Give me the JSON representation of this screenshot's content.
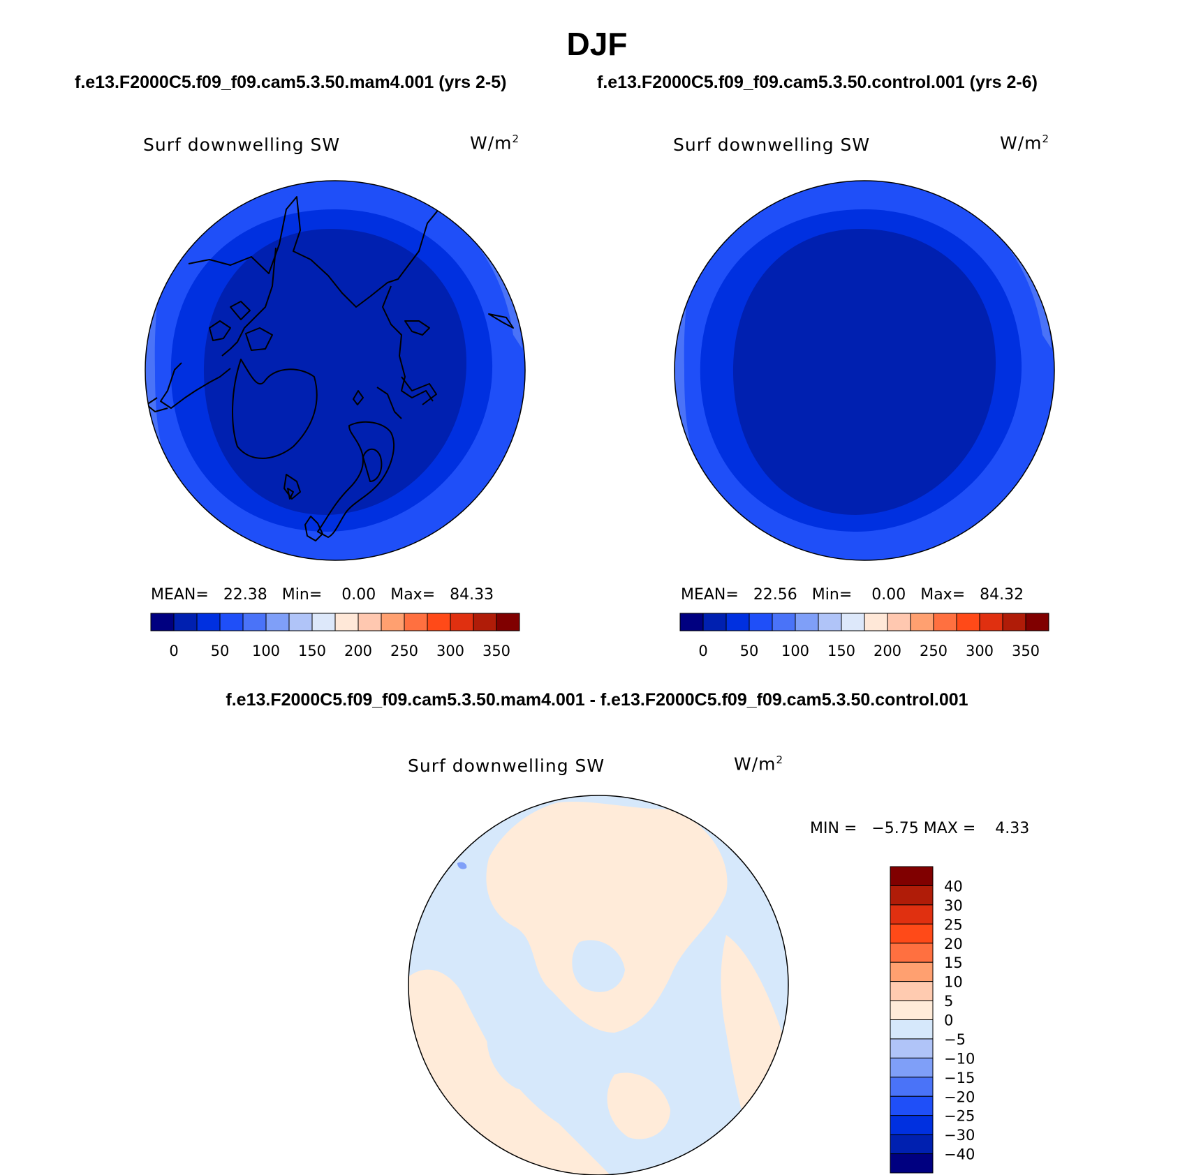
{
  "title": "DJF",
  "case_titles": {
    "left": "f.e13.F2000C5.f09_f09.cam5.3.50.mam4.001 (yrs 2-5)",
    "right": "f.e13.F2000C5.f09_f09.cam5.3.50.control.001 (yrs 2-6)"
  },
  "diff_title": "f.e13.F2000C5.f09_f09.cam5.3.50.mam4.001 - f.e13.F2000C5.f09_f09.cam5.3.50.control.001",
  "colors": {
    "abs_levels": [
      "#000080",
      "#0020b0",
      "#0030e0",
      "#1f4ff8",
      "#4a73f8",
      "#7f9ff8",
      "#b0c4f8",
      "#dde8fa",
      "#ffe8d8",
      "#ffc8b0",
      "#ffa070",
      "#ff7040",
      "#ff4a18",
      "#e03010",
      "#b01c08",
      "#800000"
    ],
    "diff_levels": [
      "#000080",
      "#0020b0",
      "#0030e0",
      "#1f4ff8",
      "#4a73f8",
      "#7f9ff8",
      "#b0c4f8",
      "#d6e8fb",
      "#ffebd9",
      "#ffcbb0",
      "#ffa070",
      "#ff7040",
      "#ff4a18",
      "#e03010",
      "#b01c08",
      "#800000"
    ],
    "map_outer": "#1f4ff8",
    "map_mid": "#0030e0",
    "map_inner": "#0020b0",
    "diff_pos": "#ffebd9",
    "diff_neg": "#d6e8fb"
  },
  "chart_data": [
    {
      "type": "heatmap",
      "projection": "north-polar-stereographic",
      "title": "Surf downwelling SW",
      "units": "W/m",
      "units_superscript": "2",
      "stats": {
        "mean_label": "MEAN=",
        "mean": "22.38",
        "min_label": "Min=",
        "min": "0.00",
        "max_label": "Max=",
        "max": "84.33"
      },
      "colorbar": {
        "orientation": "horizontal",
        "tick_labels": [
          "0",
          "50",
          "100",
          "150",
          "200",
          "250",
          "300",
          "350"
        ]
      }
    },
    {
      "type": "heatmap",
      "projection": "north-polar-stereographic",
      "title": "Surf downwelling SW",
      "units": "W/m",
      "units_superscript": "2",
      "stats": {
        "mean_label": "MEAN=",
        "mean": "22.56",
        "min_label": "Min=",
        "min": "0.00",
        "max_label": "Max=",
        "max": "84.32"
      },
      "colorbar": {
        "orientation": "horizontal",
        "tick_labels": [
          "0",
          "50",
          "100",
          "150",
          "200",
          "250",
          "300",
          "350"
        ]
      }
    },
    {
      "type": "heatmap",
      "projection": "north-polar-stereographic",
      "title": "Surf downwelling SW",
      "units": "W/m",
      "units_superscript": "2",
      "stats": {
        "min_label": "MIN =",
        "min": "−5.75",
        "max_label": "MAX =",
        "max": "4.33"
      },
      "colorbar": {
        "orientation": "vertical",
        "tick_labels": [
          "40",
          "30",
          "25",
          "20",
          "15",
          "10",
          "5",
          "0",
          "−5",
          "−10",
          "−15",
          "−20",
          "−25",
          "−30",
          "−40"
        ]
      }
    }
  ]
}
